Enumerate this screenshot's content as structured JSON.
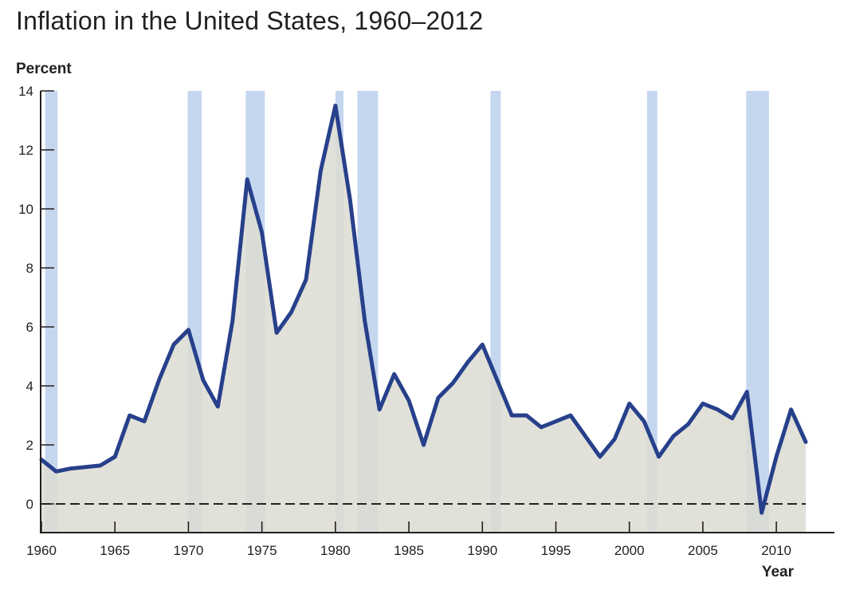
{
  "chart_data": {
    "type": "line",
    "title": "Inflation in the United States, 1960–2012",
    "ylabel": "Percent",
    "xlabel": "Year",
    "ylim": [
      -1,
      14
    ],
    "xlim": [
      1960,
      2012
    ],
    "y_ticks": [
      0,
      2,
      4,
      6,
      8,
      10,
      12,
      14
    ],
    "y_tick_labels": [
      "0",
      "2",
      "4",
      "6",
      "8",
      "10",
      "12",
      "14"
    ],
    "x_ticks": [
      1960,
      1965,
      1970,
      1975,
      1980,
      1985,
      1990,
      1995,
      2000,
      2005,
      2010
    ],
    "x_tick_labels": [
      "1960",
      "1965",
      "1970",
      "1975",
      "1980",
      "1985",
      "1990",
      "1995",
      "2000",
      "2005",
      "2010"
    ],
    "grid": false,
    "zero_line": "dashed",
    "fill_under_line": true,
    "colors": {
      "line": "#27408b",
      "area": "#dcdcd2",
      "recession_band": "#c5d6ef",
      "axis": "#231f20"
    },
    "recession_periods": [
      [
        1960.25,
        1961.1
      ],
      [
        1969.95,
        1970.9
      ],
      [
        1973.9,
        1975.2
      ],
      [
        1980.0,
        1980.55
      ],
      [
        1981.5,
        1982.9
      ],
      [
        1990.55,
        1991.25
      ],
      [
        2001.2,
        2001.9
      ],
      [
        2007.95,
        2009.5
      ]
    ],
    "x": [
      1960,
      1961,
      1962,
      1963,
      1964,
      1965,
      1966,
      1967,
      1968,
      1969,
      1970,
      1971,
      1972,
      1973,
      1974,
      1975,
      1976,
      1977,
      1978,
      1979,
      1980,
      1981,
      1982,
      1983,
      1984,
      1985,
      1986,
      1987,
      1988,
      1989,
      1990,
      1991,
      1992,
      1993,
      1994,
      1995,
      1996,
      1997,
      1998,
      1999,
      2000,
      2001,
      2002,
      2003,
      2004,
      2005,
      2006,
      2007,
      2008,
      2009,
      2010,
      2011,
      2012
    ],
    "series": [
      {
        "values": [
          1.5,
          1.1,
          1.2,
          1.25,
          1.3,
          1.6,
          3.0,
          2.8,
          4.2,
          5.4,
          5.9,
          4.2,
          3.3,
          6.2,
          11.0,
          9.2,
          5.8,
          6.5,
          7.6,
          11.3,
          13.5,
          10.3,
          6.2,
          3.2,
          4.4,
          3.5,
          2.0,
          3.6,
          4.1,
          4.8,
          5.4,
          4.2,
          3.0,
          3.0,
          2.6,
          2.8,
          3.0,
          2.3,
          1.6,
          2.2,
          3.4,
          2.8,
          1.6,
          2.3,
          2.7,
          3.4,
          3.2,
          2.9,
          3.8,
          -0.3,
          1.6,
          3.2,
          2.1
        ]
      }
    ]
  }
}
